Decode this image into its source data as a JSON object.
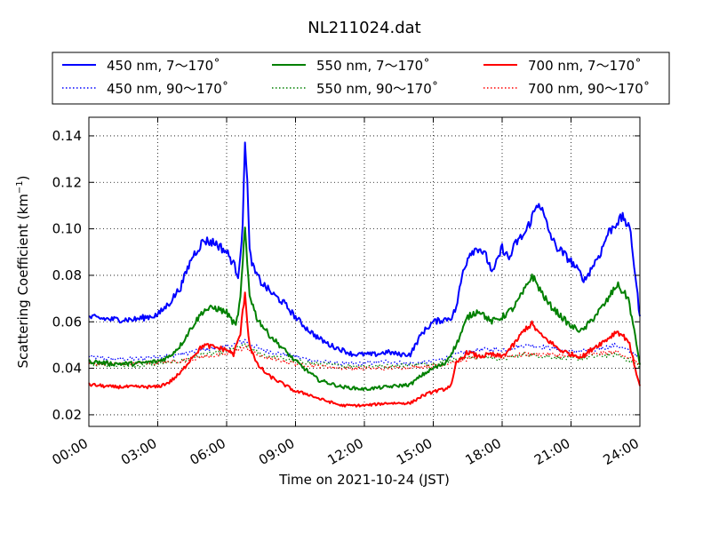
{
  "chart_data": {
    "type": "line",
    "title": "NL211024.dat",
    "xlabel": "Time on 2021-10-24 (JST)",
    "ylabel_main": "Scattering Coefficient (km",
    "ylabel_sup": "−1",
    "ylabel_tail": ")",
    "x_unit": "hours",
    "xlim": [
      0,
      24
    ],
    "ylim": [
      0.015,
      0.148
    ],
    "grid": true,
    "legend_position": "top",
    "x_ticks": [
      {
        "value": 0,
        "label": "00:00"
      },
      {
        "value": 3,
        "label": "03:00"
      },
      {
        "value": 6,
        "label": "06:00"
      },
      {
        "value": 9,
        "label": "09:00"
      },
      {
        "value": 12,
        "label": "12:00"
      },
      {
        "value": 15,
        "label": "15:00"
      },
      {
        "value": 18,
        "label": "18:00"
      },
      {
        "value": 21,
        "label": "21:00"
      },
      {
        "value": 24,
        "label": "24:00"
      }
    ],
    "y_ticks": [
      {
        "value": 0.02,
        "label": "0.02"
      },
      {
        "value": 0.04,
        "label": "0.04"
      },
      {
        "value": 0.06,
        "label": "0.06"
      },
      {
        "value": 0.08,
        "label": "0.08"
      },
      {
        "value": 0.1,
        "label": "0.10"
      },
      {
        "value": 0.12,
        "label": "0.12"
      },
      {
        "value": 0.14,
        "label": "0.14"
      }
    ],
    "series": [
      {
        "name": "450 nm, 7～170˚",
        "color": "#0000ff",
        "style": "solid",
        "x": [
          0,
          1,
          2,
          2.5,
          3,
          3.5,
          4,
          4.5,
          5,
          5.5,
          6,
          6.3,
          6.5,
          6.7,
          6.8,
          6.9,
          7,
          7.2,
          7.5,
          8,
          8.5,
          9,
          9.5,
          10,
          10.5,
          11,
          11.5,
          12,
          12.5,
          13,
          13.5,
          14,
          14.5,
          15,
          15.5,
          15.8,
          16,
          16.3,
          16.6,
          17,
          17.3,
          17.6,
          18,
          18.3,
          18.6,
          19,
          19.3,
          19.6,
          20,
          20.3,
          20.6,
          21,
          21.3,
          21.6,
          22,
          22.3,
          22.6,
          23,
          23.3,
          23.6,
          24
        ],
        "values": [
          0.062,
          0.061,
          0.061,
          0.062,
          0.063,
          0.068,
          0.075,
          0.088,
          0.095,
          0.094,
          0.09,
          0.085,
          0.08,
          0.1,
          0.14,
          0.12,
          0.09,
          0.082,
          0.077,
          0.072,
          0.068,
          0.062,
          0.057,
          0.053,
          0.05,
          0.048,
          0.046,
          0.046,
          0.046,
          0.047,
          0.046,
          0.046,
          0.055,
          0.06,
          0.061,
          0.062,
          0.066,
          0.082,
          0.09,
          0.092,
          0.088,
          0.081,
          0.092,
          0.087,
          0.094,
          0.098,
          0.105,
          0.112,
          0.1,
          0.093,
          0.09,
          0.086,
          0.082,
          0.078,
          0.085,
          0.09,
          0.098,
          0.103,
          0.105,
          0.098,
          0.062
        ]
      },
      {
        "name": "450 nm, 90～170˚",
        "color": "#0000ff",
        "style": "dotted",
        "x": [
          0,
          1,
          2,
          3,
          4,
          5,
          6,
          6.8,
          7.5,
          9,
          10,
          11,
          12,
          13,
          14,
          15,
          16,
          17,
          18,
          19,
          20,
          21,
          22,
          23,
          24
        ],
        "values": [
          0.045,
          0.044,
          0.044,
          0.045,
          0.046,
          0.048,
          0.049,
          0.052,
          0.048,
          0.045,
          0.043,
          0.042,
          0.042,
          0.043,
          0.042,
          0.043,
          0.046,
          0.048,
          0.048,
          0.05,
          0.049,
          0.047,
          0.048,
          0.05,
          0.045
        ]
      },
      {
        "name": "550 nm, 7～170˚",
        "color": "#008000",
        "style": "solid",
        "x": [
          0,
          1,
          2,
          3,
          3.5,
          4,
          4.5,
          5,
          5.5,
          6,
          6.4,
          6.6,
          6.8,
          6.9,
          7,
          7.3,
          7.8,
          8.5,
          9,
          9.5,
          10,
          11,
          12,
          13,
          14,
          14.5,
          15,
          15.5,
          16,
          16.5,
          17,
          17.5,
          18,
          18.5,
          19,
          19.3,
          19.7,
          20,
          20.5,
          21,
          21.5,
          22,
          22.5,
          23,
          23.5,
          24
        ],
        "values": [
          0.043,
          0.042,
          0.042,
          0.043,
          0.045,
          0.05,
          0.058,
          0.065,
          0.066,
          0.064,
          0.058,
          0.07,
          0.1,
          0.085,
          0.072,
          0.062,
          0.055,
          0.048,
          0.043,
          0.039,
          0.035,
          0.032,
          0.031,
          0.032,
          0.033,
          0.037,
          0.04,
          0.042,
          0.05,
          0.062,
          0.065,
          0.06,
          0.062,
          0.066,
          0.074,
          0.08,
          0.073,
          0.068,
          0.063,
          0.058,
          0.056,
          0.062,
          0.068,
          0.076,
          0.07,
          0.042
        ]
      },
      {
        "name": "550 nm, 90～170˚",
        "color": "#008000",
        "style": "dotted",
        "x": [
          0,
          2,
          4,
          5,
          6,
          6.8,
          7.5,
          9,
          11,
          13,
          15,
          16,
          17,
          18,
          19,
          20,
          21,
          22,
          23,
          24
        ],
        "values": [
          0.042,
          0.041,
          0.043,
          0.046,
          0.047,
          0.05,
          0.046,
          0.043,
          0.041,
          0.041,
          0.042,
          0.044,
          0.045,
          0.044,
          0.046,
          0.045,
          0.044,
          0.045,
          0.046,
          0.041
        ]
      },
      {
        "name": "700 nm, 7～170˚",
        "color": "#ff0000",
        "style": "solid",
        "x": [
          0,
          1,
          2,
          3,
          3.5,
          4,
          4.5,
          5,
          5.5,
          6,
          6.3,
          6.6,
          6.8,
          6.9,
          7,
          7.3,
          7.8,
          8.5,
          9,
          9.5,
          10,
          11,
          12,
          13,
          14,
          14.5,
          15,
          15.5,
          15.8,
          16,
          16.5,
          17,
          17.5,
          18,
          18.5,
          19,
          19.3,
          19.7,
          20,
          20.5,
          21,
          21.5,
          22,
          22.5,
          23,
          23.5,
          24
        ],
        "values": [
          0.033,
          0.032,
          0.032,
          0.032,
          0.034,
          0.038,
          0.045,
          0.05,
          0.049,
          0.048,
          0.046,
          0.055,
          0.073,
          0.06,
          0.05,
          0.042,
          0.037,
          0.033,
          0.03,
          0.029,
          0.027,
          0.024,
          0.024,
          0.025,
          0.025,
          0.028,
          0.03,
          0.031,
          0.033,
          0.042,
          0.047,
          0.045,
          0.046,
          0.045,
          0.05,
          0.057,
          0.059,
          0.054,
          0.052,
          0.048,
          0.046,
          0.045,
          0.049,
          0.052,
          0.056,
          0.052,
          0.032
        ]
      },
      {
        "name": "700 nm, 90～170˚",
        "color": "#ff0000",
        "style": "dotted",
        "x": [
          0,
          2,
          4,
          5,
          6,
          6.8,
          7.5,
          9,
          11,
          13,
          15,
          16,
          17,
          18,
          19,
          20,
          21,
          22,
          23,
          24
        ],
        "values": [
          0.042,
          0.042,
          0.043,
          0.045,
          0.046,
          0.049,
          0.045,
          0.042,
          0.04,
          0.04,
          0.041,
          0.043,
          0.045,
          0.045,
          0.046,
          0.046,
          0.045,
          0.046,
          0.047,
          0.042
        ]
      }
    ]
  }
}
